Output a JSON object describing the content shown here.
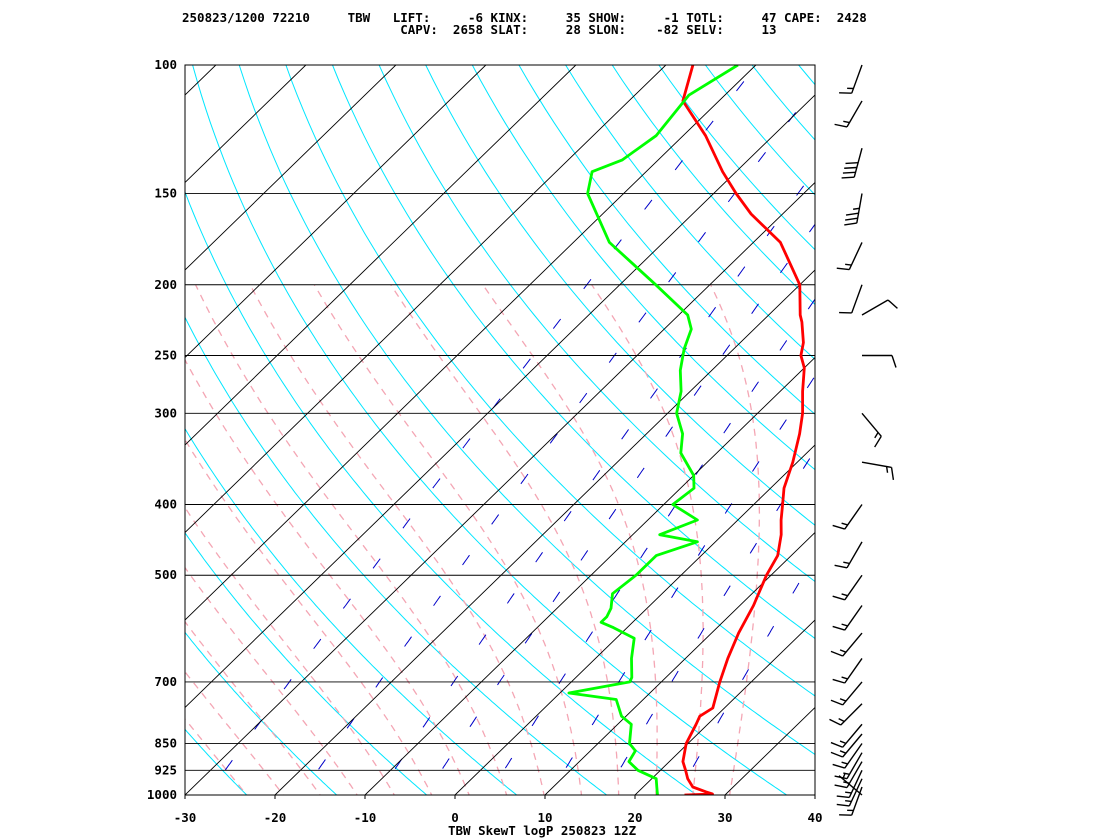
{
  "header": {
    "line1": "250823/1200 72210     TBW   LIFT:     -6 KINX:     35 SHOW:     -1 TOTL:     47 CAPE:  2428",
    "line2": "                             CAPV:  2658 SLAT:     28 SLON:    -82 SELV:     13"
  },
  "chart_data": {
    "type": "line",
    "title": "TBW SkewT logP 250823 12Z",
    "xlabel": "",
    "ylabel": "",
    "x_scale": "skew-T temperature (degC)",
    "y_scale": "log pressure (hPa)",
    "xlim": [
      -30,
      40
    ],
    "ylim": [
      1000,
      100
    ],
    "x_ticks": [
      -30,
      -20,
      -10,
      0,
      10,
      20,
      30,
      40
    ],
    "y_ticks": [
      1000,
      925,
      850,
      700,
      500,
      400,
      300,
      250,
      200,
      150,
      100
    ],
    "grid": true,
    "colors": {
      "temperature": "#ff0000",
      "dewpoint": "#00ff00",
      "isotherm": "#000000",
      "dry_adiabat": "#00e6ff",
      "moist_adiabat": "#f4a6b4",
      "mixing_ratio": "#0000c8",
      "wind_barb": "#000000"
    },
    "series": [
      {
        "name": "temperature",
        "points": [
          [
            1000,
            25.5
          ],
          [
            997,
            28.5
          ],
          [
            990,
            27.5
          ],
          [
            975,
            25.5
          ],
          [
            950,
            24.0
          ],
          [
            925,
            22.8
          ],
          [
            900,
            21.5
          ],
          [
            850,
            19.8
          ],
          [
            800,
            18.7
          ],
          [
            780,
            18.2
          ],
          [
            760,
            18.7
          ],
          [
            700,
            16.5
          ],
          [
            650,
            14.7
          ],
          [
            600,
            13.0
          ],
          [
            550,
            11.5
          ],
          [
            500,
            9.5
          ],
          [
            470,
            8.5
          ],
          [
            440,
            6.5
          ],
          [
            420,
            4.8
          ],
          [
            400,
            3.2
          ],
          [
            380,
            1.5
          ],
          [
            350,
            -0.5
          ],
          [
            320,
            -3.0
          ],
          [
            300,
            -5.0
          ],
          [
            280,
            -7.5
          ],
          [
            260,
            -10.0
          ],
          [
            250,
            -11.8
          ],
          [
            240,
            -13.0
          ],
          [
            225,
            -15.5
          ],
          [
            220,
            -16.5
          ],
          [
            200,
            -20.0
          ],
          [
            175,
            -27.0
          ],
          [
            160,
            -33.5
          ],
          [
            150,
            -37.5
          ],
          [
            140,
            -41.5
          ],
          [
            125,
            -47.5
          ],
          [
            112,
            -54.0
          ],
          [
            100,
            -57.0
          ]
        ]
      },
      {
        "name": "dewpoint",
        "points": [
          [
            1000,
            22.5
          ],
          [
            975,
            21.5
          ],
          [
            950,
            20.5
          ],
          [
            925,
            17.5
          ],
          [
            900,
            15.5
          ],
          [
            870,
            15.0
          ],
          [
            850,
            13.5
          ],
          [
            800,
            11.5
          ],
          [
            780,
            9.5
          ],
          [
            740,
            7.0
          ],
          [
            725,
            1.0
          ],
          [
            700,
            6.5
          ],
          [
            690,
            6.2
          ],
          [
            650,
            4.0
          ],
          [
            610,
            2.0
          ],
          [
            590,
            -1.5
          ],
          [
            580,
            -3.5
          ],
          [
            570,
            -3.5
          ],
          [
            555,
            -4.0
          ],
          [
            530,
            -5.5
          ],
          [
            500,
            -5.0
          ],
          [
            470,
            -5.0
          ],
          [
            450,
            -2.0
          ],
          [
            440,
            -7.0
          ],
          [
            420,
            -4.5
          ],
          [
            400,
            -9.0
          ],
          [
            380,
            -8.5
          ],
          [
            365,
            -10.0
          ],
          [
            340,
            -14.0
          ],
          [
            320,
            -16.0
          ],
          [
            300,
            -19.0
          ],
          [
            280,
            -21.0
          ],
          [
            262,
            -23.5
          ],
          [
            245,
            -25.5
          ],
          [
            230,
            -27.0
          ],
          [
            220,
            -29.0
          ],
          [
            200,
            -36.0
          ],
          [
            175,
            -46.0
          ],
          [
            150,
            -54.0
          ],
          [
            140,
            -56.0
          ],
          [
            135,
            -54.0
          ],
          [
            125,
            -53.0
          ],
          [
            110,
            -54.0
          ],
          [
            100,
            -52.0
          ]
        ]
      }
    ],
    "wind_barbs_kt": [
      {
        "p": 1000,
        "dir": 310,
        "spd": 5
      },
      {
        "p": 975,
        "dir": 200,
        "spd": 15
      },
      {
        "p": 950,
        "dir": 205,
        "spd": 15
      },
      {
        "p": 925,
        "dir": 205,
        "spd": 15
      },
      {
        "p": 900,
        "dir": 210,
        "spd": 15
      },
      {
        "p": 875,
        "dir": 210,
        "spd": 15
      },
      {
        "p": 850,
        "dir": 215,
        "spd": 15
      },
      {
        "p": 825,
        "dir": 220,
        "spd": 15
      },
      {
        "p": 800,
        "dir": 220,
        "spd": 15
      },
      {
        "p": 750,
        "dir": 225,
        "spd": 15
      },
      {
        "p": 700,
        "dir": 220,
        "spd": 15
      },
      {
        "p": 650,
        "dir": 215,
        "spd": 15
      },
      {
        "p": 600,
        "dir": 220,
        "spd": 15
      },
      {
        "p": 550,
        "dir": 215,
        "spd": 15
      },
      {
        "p": 500,
        "dir": 215,
        "spd": 15
      },
      {
        "p": 450,
        "dir": 210,
        "spd": 15
      },
      {
        "p": 400,
        "dir": 215,
        "spd": 15
      },
      {
        "p": 350,
        "dir": 100,
        "spd": 15
      },
      {
        "p": 300,
        "dir": 140,
        "spd": 15
      },
      {
        "p": 250,
        "dir": 90,
        "spd": 10
      },
      {
        "p": 220,
        "dir": 60,
        "spd": 10
      },
      {
        "p": 200,
        "dir": 200,
        "spd": 10
      },
      {
        "p": 175,
        "dir": 205,
        "spd": 15
      },
      {
        "p": 150,
        "dir": 190,
        "spd": 35
      },
      {
        "p": 130,
        "dir": 195,
        "spd": 40
      },
      {
        "p": 112,
        "dir": 210,
        "spd": 15
      },
      {
        "p": 100,
        "dir": 200,
        "spd": 15
      }
    ]
  }
}
